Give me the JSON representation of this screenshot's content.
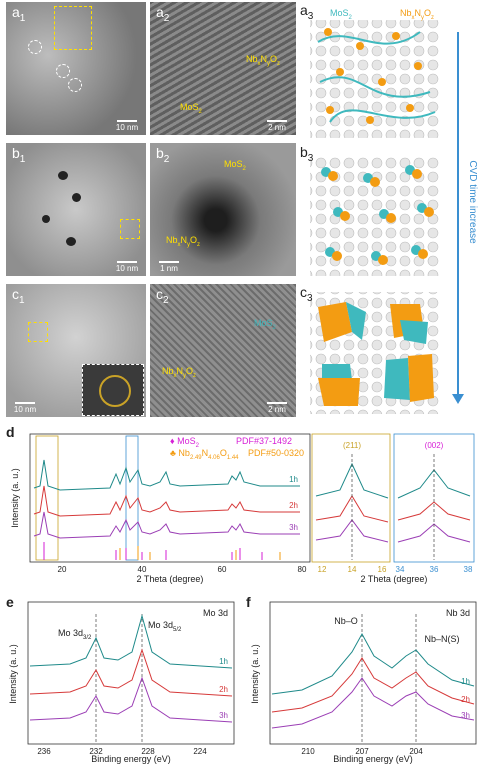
{
  "tem_panels": {
    "a1": {
      "label": "a",
      "sub": "1",
      "scale": "10 nm"
    },
    "a2": {
      "label": "a",
      "sub": "2",
      "scale": "2 nm",
      "ann1": "Nb",
      "ann1_sub1": "x",
      "ann1_mid": "N",
      "ann1_sub2": "y",
      "ann1_end": "O",
      "ann1_sub3": "z",
      "ann2": "MoS",
      "ann2_sub": "2"
    },
    "b1": {
      "label": "b",
      "sub": "1",
      "scale": "10 nm"
    },
    "b2": {
      "label": "b",
      "sub": "2",
      "scale": "1 nm",
      "ann1": "MoS",
      "ann1_sub": "2",
      "ann2": "Nb",
      "ann2_sub1": "x",
      "ann2_mid": "N",
      "ann2_sub2": "y",
      "ann2_end": "O",
      "ann2_sub3": "z"
    },
    "c1": {
      "label": "c",
      "sub": "1",
      "scale": "10 nm"
    },
    "c2": {
      "label": "c",
      "sub": "2",
      "scale": "2 nm",
      "ann1": "MoS",
      "ann1_sub": "2",
      "ann2": "Nb",
      "ann2_sub1": "x",
      "ann2_mid": "N",
      "ann2_sub2": "y",
      "ann2_end": "O",
      "ann2_sub3": "z"
    }
  },
  "schematic": {
    "a3_label": "a",
    "a3_sub": "3",
    "b3_label": "b",
    "b3_sub": "3",
    "c3_label": "c",
    "c3_sub": "3",
    "mos2": "MoS",
    "mos2_sub": "2",
    "nbno": "Nb",
    "nbno_sub1": "x",
    "nbno_mid": "N",
    "nbno_sub2": "y",
    "nbno_end": "O",
    "nbno_sub3": "z",
    "arrow_text": "CVD time increase"
  },
  "colors": {
    "teal": "#3fb9be",
    "orange": "#f39c12",
    "red": "#d63a3a",
    "purple": "#9b3fb5",
    "magenta": "#d61fd6",
    "gold": "#c9a227",
    "blue": "#3a8fd1"
  },
  "panel_d": {
    "label": "d",
    "ylabel": "Intensity (a. u.)",
    "xlabel": "2 Theta (degree)",
    "xlabel2": "2 Theta (degree)",
    "legend_mos2": "MoS",
    "legend_mos2_sub": "2",
    "legend_mos2_pdf": "PDF#37-1492",
    "legend_nb": "Nb",
    "legend_nb_sub1": "2.49",
    "legend_nb_mid": "N",
    "legend_nb_sub2": "4.06",
    "legend_nb_end": "O",
    "legend_nb_sub3": "1.44",
    "legend_nb_pdf": "PDF#50-0320",
    "ticks_main": [
      "20",
      "40",
      "60",
      "80"
    ],
    "ticks_zoom1": [
      "12",
      "14",
      "16"
    ],
    "ticks_zoom2": [
      "34",
      "36",
      "38"
    ],
    "peak_211": "(211)",
    "peak_002": "(002)",
    "series": [
      "1h",
      "2h",
      "3h"
    ]
  },
  "panel_e": {
    "label": "e",
    "title": "Mo 3d",
    "peak1": "Mo 3d",
    "peak1_sub": "3/2",
    "peak2": "Mo 3d",
    "peak2_sub": "5/2",
    "ylabel": "Intensity (a. u.)",
    "xlabel": "Binding energy (eV)",
    "ticks": [
      "236",
      "232",
      "228",
      "224"
    ],
    "series": [
      "1h",
      "2h",
      "3h"
    ]
  },
  "panel_f": {
    "label": "f",
    "title": "Nb 3d",
    "peak1": "Nb–O",
    "peak2": "Nb–N(S)",
    "ylabel": "Intensity (a. u.)",
    "xlabel": "Binding energy (eV)",
    "ticks": [
      "210",
      "207",
      "204"
    ],
    "series": [
      "1h",
      "2h",
      "3h"
    ]
  },
  "chart_data": [
    {
      "type": "line",
      "title": "",
      "xlabel": "2 Theta (degree)",
      "ylabel": "Intensity (a. u.)",
      "xlim": [
        10,
        80
      ],
      "series": [
        {
          "name": "1h",
          "peaks": [
            14.4,
            33,
            36,
            39.6,
            41.5,
            58.5,
            60.5,
            61
          ]
        },
        {
          "name": "2h",
          "peaks": [
            14.4,
            33,
            36,
            39.6,
            41.5,
            58.5,
            60.5
          ]
        },
        {
          "name": "3h",
          "peaks": [
            14.4,
            33,
            36,
            39.6,
            41.5,
            58.5,
            60.5
          ]
        }
      ]
    },
    {
      "type": "line",
      "title": "Mo 3d",
      "xlabel": "Binding energy (eV)",
      "ylabel": "Intensity (a. u.)",
      "xlim": [
        237,
        222
      ],
      "series": [
        {
          "name": "1h",
          "peaks": [
            232.1,
            229
          ]
        },
        {
          "name": "2h",
          "peaks": [
            232.1,
            229
          ]
        },
        {
          "name": "3h",
          "peaks": [
            232.1,
            229
          ]
        }
      ]
    },
    {
      "type": "line",
      "title": "Nb 3d",
      "xlabel": "Binding energy (eV)",
      "ylabel": "Intensity (a. u.)",
      "xlim": [
        213,
        201
      ],
      "series": [
        {
          "name": "1h",
          "peaks": [
            207.2,
            204.3
          ]
        },
        {
          "name": "2h",
          "peaks": [
            207.2,
            204.3
          ]
        },
        {
          "name": "3h",
          "peaks": [
            207.2,
            204.3
          ]
        }
      ]
    }
  ]
}
